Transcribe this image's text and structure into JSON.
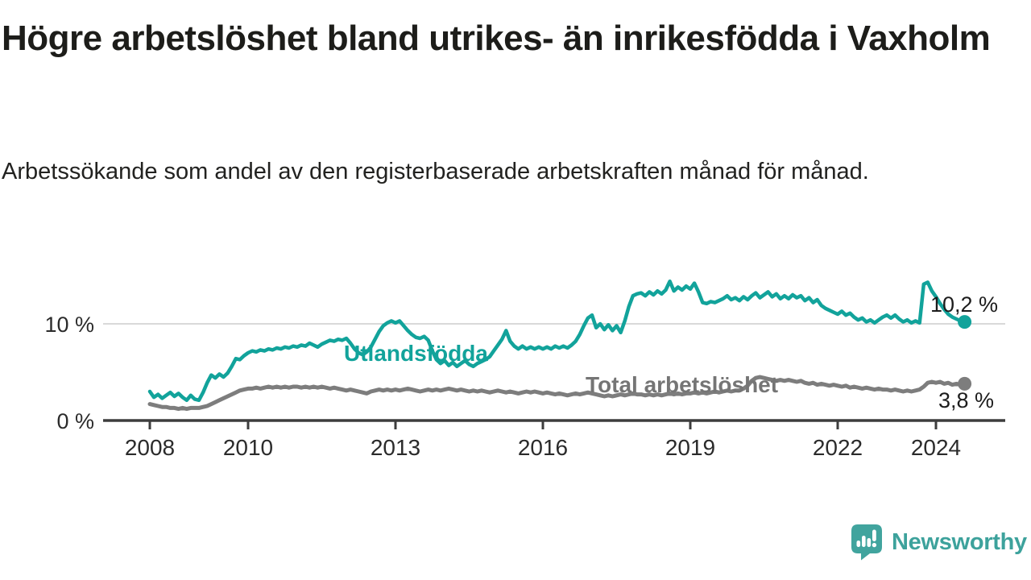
{
  "header": {
    "title": "Högre arbetslöshet bland utrikes- än inrikesfödda i Vaxholm",
    "subtitle": "Arbetssökande som andel av den registerbaserade arbetskraften månad för månad."
  },
  "branding": {
    "name": "Newsworthy",
    "logo_color": "#41a49e"
  },
  "chart_data": {
    "type": "line",
    "title": "",
    "xlabel": "",
    "ylabel": "",
    "x_unit": "month",
    "x_start": "2008-01",
    "x_end": "2024-08",
    "ylim": [
      0,
      15.5
    ],
    "grid": "single horizontal gridline at 10 %",
    "legend_position": "inline labels on lines",
    "x_ticks": [
      {
        "year": 2008,
        "label": "2008"
      },
      {
        "year": 2010,
        "label": "2010"
      },
      {
        "year": 2013,
        "label": "2013"
      },
      {
        "year": 2016,
        "label": "2016"
      },
      {
        "year": 2019,
        "label": "2019"
      },
      {
        "year": 2022,
        "label": "2022"
      },
      {
        "year": 2024,
        "label": "2024"
      }
    ],
    "y_ticks": [
      {
        "value": 10,
        "label": "10 %"
      },
      {
        "value": 0,
        "label": "0 %"
      }
    ],
    "series": [
      {
        "name": "Utlandsfödda",
        "color": "#12a39b",
        "label_color": "#12a39b",
        "end_label": "10,2 %",
        "end_value": 10.2,
        "values": [
          3.0,
          2.4,
          2.7,
          2.3,
          2.6,
          2.9,
          2.5,
          2.8,
          2.4,
          2.1,
          2.6,
          2.2,
          2.1,
          2.9,
          3.9,
          4.7,
          4.4,
          4.8,
          4.5,
          4.9,
          5.6,
          6.4,
          6.3,
          6.7,
          7.0,
          7.2,
          7.1,
          7.3,
          7.2,
          7.4,
          7.3,
          7.5,
          7.4,
          7.6,
          7.5,
          7.7,
          7.6,
          7.8,
          7.7,
          8.0,
          7.8,
          7.6,
          7.9,
          8.1,
          8.3,
          8.2,
          8.4,
          8.3,
          8.5,
          8.0,
          7.4,
          7.0,
          6.8,
          7.1,
          7.6,
          8.4,
          9.2,
          9.8,
          10.1,
          10.3,
          10.1,
          10.3,
          9.8,
          9.3,
          8.9,
          8.6,
          8.5,
          8.7,
          8.3,
          7.2,
          6.3,
          5.9,
          6.2,
          5.7,
          6.0,
          5.6,
          5.9,
          6.2,
          5.8,
          5.6,
          5.9,
          6.1,
          6.3,
          6.6,
          7.2,
          7.8,
          8.4,
          9.3,
          8.2,
          7.7,
          7.4,
          7.7,
          7.4,
          7.6,
          7.4,
          7.6,
          7.4,
          7.6,
          7.4,
          7.7,
          7.5,
          7.7,
          7.5,
          7.8,
          8.2,
          8.9,
          9.8,
          10.6,
          10.9,
          9.6,
          10.0,
          9.4,
          9.9,
          9.3,
          9.8,
          9.1,
          10.3,
          11.8,
          12.9,
          13.1,
          13.2,
          12.9,
          13.3,
          13.0,
          13.4,
          13.1,
          13.5,
          14.4,
          13.4,
          13.8,
          13.5,
          13.9,
          13.6,
          14.2,
          13.3,
          12.2,
          12.1,
          12.3,
          12.2,
          12.4,
          12.6,
          12.9,
          12.5,
          12.7,
          12.4,
          12.8,
          12.5,
          12.9,
          13.2,
          12.7,
          13.0,
          13.3,
          12.8,
          13.1,
          12.6,
          12.9,
          12.6,
          13.0,
          12.7,
          12.9,
          12.4,
          12.7,
          12.2,
          12.5,
          11.9,
          11.6,
          11.4,
          11.2,
          11.0,
          11.3,
          10.9,
          11.1,
          10.7,
          10.4,
          10.6,
          10.2,
          10.4,
          10.1,
          10.4,
          10.7,
          10.9,
          10.6,
          10.9,
          10.5,
          10.2,
          10.4,
          10.1,
          10.3,
          10.1,
          14.1,
          14.3,
          13.4,
          12.8,
          12.1,
          11.5,
          11.0,
          10.7,
          10.5,
          10.3,
          10.2
        ]
      },
      {
        "name": "Total arbetslöshet",
        "color": "#7d7d7d",
        "label_color": "#757575",
        "end_label": "3,8 %",
        "end_value": 3.8,
        "values": [
          1.7,
          1.6,
          1.5,
          1.4,
          1.4,
          1.3,
          1.3,
          1.2,
          1.3,
          1.2,
          1.3,
          1.3,
          1.3,
          1.4,
          1.5,
          1.7,
          1.9,
          2.1,
          2.3,
          2.5,
          2.7,
          2.9,
          3.1,
          3.2,
          3.3,
          3.3,
          3.4,
          3.3,
          3.4,
          3.5,
          3.4,
          3.5,
          3.4,
          3.5,
          3.4,
          3.5,
          3.5,
          3.4,
          3.5,
          3.4,
          3.5,
          3.4,
          3.5,
          3.4,
          3.3,
          3.4,
          3.3,
          3.2,
          3.1,
          3.2,
          3.1,
          3.0,
          2.9,
          2.8,
          3.0,
          3.1,
          3.2,
          3.1,
          3.2,
          3.1,
          3.2,
          3.1,
          3.2,
          3.3,
          3.2,
          3.1,
          3.0,
          3.1,
          3.2,
          3.1,
          3.2,
          3.1,
          3.2,
          3.3,
          3.2,
          3.1,
          3.2,
          3.1,
          3.0,
          3.1,
          3.0,
          3.1,
          3.0,
          2.9,
          3.0,
          3.1,
          3.0,
          2.9,
          3.0,
          2.9,
          2.8,
          2.9,
          3.0,
          2.9,
          3.0,
          2.9,
          2.8,
          2.9,
          2.8,
          2.7,
          2.8,
          2.7,
          2.6,
          2.7,
          2.8,
          2.7,
          2.8,
          2.9,
          2.8,
          2.7,
          2.6,
          2.5,
          2.6,
          2.5,
          2.6,
          2.7,
          2.6,
          2.7,
          2.8,
          2.7,
          2.7,
          2.6,
          2.7,
          2.6,
          2.7,
          2.6,
          2.7,
          2.8,
          2.7,
          2.8,
          2.7,
          2.8,
          2.8,
          2.9,
          2.8,
          2.9,
          2.8,
          2.9,
          3.0,
          2.9,
          3.0,
          3.1,
          3.0,
          3.1,
          3.1,
          3.3,
          3.6,
          4.1,
          4.4,
          4.5,
          4.4,
          4.3,
          4.2,
          4.1,
          4.2,
          4.1,
          4.2,
          4.1,
          4.0,
          4.1,
          3.9,
          3.8,
          3.9,
          3.7,
          3.8,
          3.7,
          3.6,
          3.7,
          3.6,
          3.5,
          3.6,
          3.4,
          3.5,
          3.4,
          3.3,
          3.4,
          3.3,
          3.2,
          3.3,
          3.2,
          3.2,
          3.1,
          3.2,
          3.1,
          3.0,
          3.1,
          3.0,
          3.1,
          3.2,
          3.5,
          3.9,
          4.0,
          3.9,
          4.0,
          3.8,
          3.9,
          3.7,
          3.8,
          3.7,
          3.8
        ]
      }
    ]
  }
}
